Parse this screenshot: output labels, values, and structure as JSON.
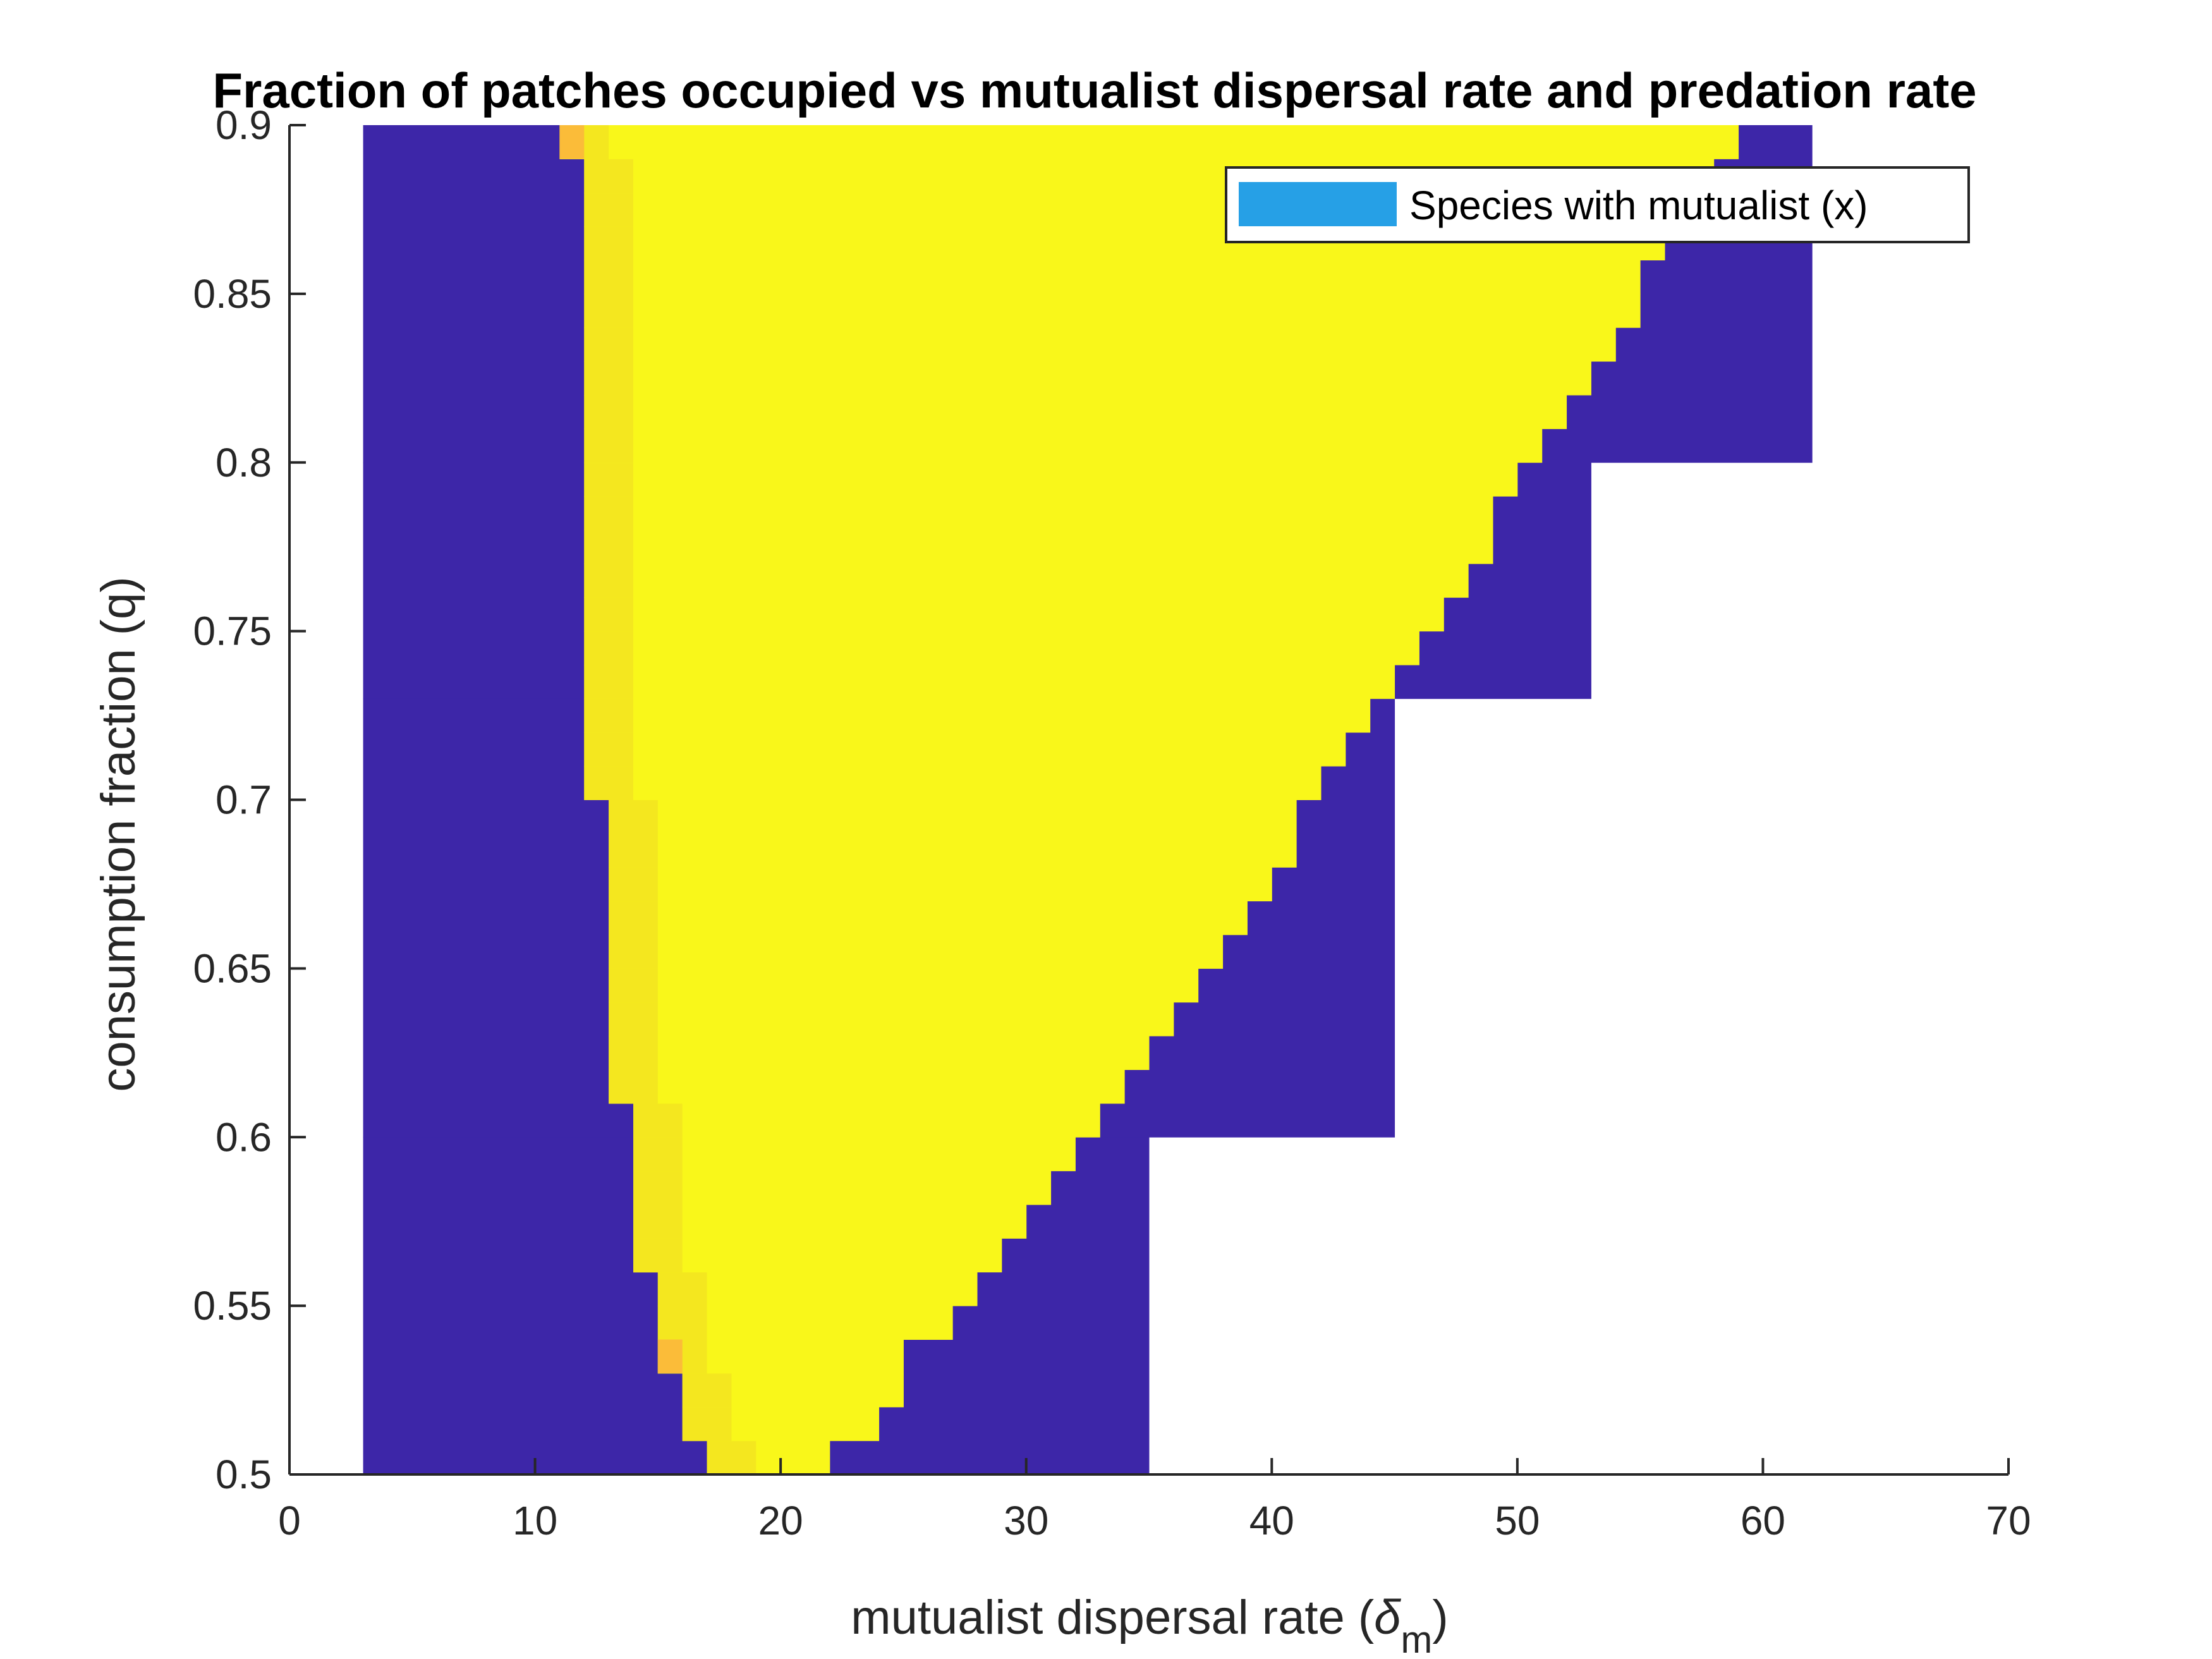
{
  "chart_data": {
    "type": "heatmap",
    "title": "Fraction of patches occupied vs mutualist dispersal rate and predation rate",
    "xlabel": "mutualist dispersal rate (",
    "xlabel_symbol": "δ",
    "xlabel_subscript": "m",
    "xlabel_close": ")",
    "ylabel": "consumption fraction (q)",
    "xlim": [
      0,
      70
    ],
    "ylim": [
      0.5,
      0.9
    ],
    "xticks": [
      "0",
      "10",
      "20",
      "30",
      "40",
      "50",
      "60",
      "70"
    ],
    "yticks": [
      "0.5",
      "0.55",
      "0.6",
      "0.65",
      "0.7",
      "0.75",
      "0.8",
      "0.85",
      "0.9"
    ],
    "legend": {
      "label": "Species with mutualist (x)",
      "color": "#26a0e6",
      "position": "top-right"
    },
    "colors": {
      "zero": "#3d26a8",
      "one": "#f9f71a",
      "near_one": "#f4e71f",
      "partial": "#fbbc39"
    },
    "grid": false,
    "cell_width_x": 1,
    "cell_height_q": 0.01,
    "x_start": 3,
    "q_start": 0.5,
    "occupied_region": {
      "description_rows": "per q row: x-range [left_edge, right_edge) of occupied (yellow) cells",
      "rows": [
        {
          "q": 0.5,
          "x_from": 17,
          "x_to": 22
        },
        {
          "q": 0.51,
          "x_from": 16,
          "x_to": 24
        },
        {
          "q": 0.52,
          "x_from": 16,
          "x_to": 25
        },
        {
          "q": 0.53,
          "x_from": 15,
          "x_to": 25
        },
        {
          "q": 0.54,
          "x_from": 15,
          "x_to": 27
        },
        {
          "q": 0.55,
          "x_from": 15,
          "x_to": 28
        },
        {
          "q": 0.56,
          "x_from": 14,
          "x_to": 29
        },
        {
          "q": 0.57,
          "x_from": 14,
          "x_to": 30
        },
        {
          "q": 0.58,
          "x_from": 14,
          "x_to": 31
        },
        {
          "q": 0.59,
          "x_from": 14,
          "x_to": 32
        },
        {
          "q": 0.6,
          "x_from": 14,
          "x_to": 33
        },
        {
          "q": 0.61,
          "x_from": 13,
          "x_to": 34
        },
        {
          "q": 0.62,
          "x_from": 13,
          "x_to": 35
        },
        {
          "q": 0.63,
          "x_from": 13,
          "x_to": 36
        },
        {
          "q": 0.64,
          "x_from": 13,
          "x_to": 37
        },
        {
          "q": 0.65,
          "x_from": 13,
          "x_to": 38
        },
        {
          "q": 0.66,
          "x_from": 13,
          "x_to": 39
        },
        {
          "q": 0.67,
          "x_from": 13,
          "x_to": 40
        },
        {
          "q": 0.68,
          "x_from": 13,
          "x_to": 41
        },
        {
          "q": 0.69,
          "x_from": 13,
          "x_to": 41
        },
        {
          "q": 0.7,
          "x_from": 12,
          "x_to": 42
        },
        {
          "q": 0.71,
          "x_from": 12,
          "x_to": 43
        },
        {
          "q": 0.72,
          "x_from": 12,
          "x_to": 44
        },
        {
          "q": 0.73,
          "x_from": 12,
          "x_to": 45
        },
        {
          "q": 0.74,
          "x_from": 12,
          "x_to": 46
        },
        {
          "q": 0.75,
          "x_from": 12,
          "x_to": 47
        },
        {
          "q": 0.76,
          "x_from": 12,
          "x_to": 48
        },
        {
          "q": 0.77,
          "x_from": 12,
          "x_to": 49
        },
        {
          "q": 0.78,
          "x_from": 12,
          "x_to": 49
        },
        {
          "q": 0.79,
          "x_from": 12,
          "x_to": 50
        },
        {
          "q": 0.8,
          "x_from": 12,
          "x_to": 51
        },
        {
          "q": 0.81,
          "x_from": 12,
          "x_to": 52
        },
        {
          "q": 0.82,
          "x_from": 12,
          "x_to": 53
        },
        {
          "q": 0.83,
          "x_from": 12,
          "x_to": 54
        },
        {
          "q": 0.84,
          "x_from": 12,
          "x_to": 55
        },
        {
          "q": 0.85,
          "x_from": 12,
          "x_to": 55
        },
        {
          "q": 0.86,
          "x_from": 12,
          "x_to": 56
        },
        {
          "q": 0.87,
          "x_from": 12,
          "x_to": 57
        },
        {
          "q": 0.88,
          "x_from": 12,
          "x_to": 58
        },
        {
          "q": 0.89,
          "x_from": 11,
          "x_to": 59
        }
      ]
    },
    "computed_region_bounds": [
      {
        "q_from": 0.5,
        "q_to": 0.6,
        "x_max": 35
      },
      {
        "q_from": 0.6,
        "q_to": 0.73,
        "x_max": 45
      },
      {
        "q_from": 0.73,
        "q_to": 0.8,
        "x_max": 53
      },
      {
        "q_from": 0.8,
        "q_to": 0.9,
        "x_max": 62
      }
    ],
    "partial_cells": [
      {
        "x": 11,
        "q": 0.89
      },
      {
        "x": 15,
        "q": 0.53
      }
    ]
  }
}
